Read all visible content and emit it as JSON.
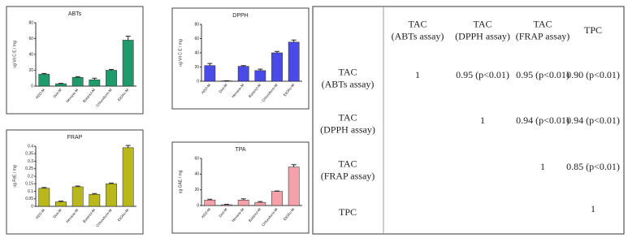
{
  "chart_data": [
    {
      "type": "bar",
      "title": "ABTs",
      "y_label": "ug Vit C E / mg",
      "categories": [
        "H2O-M",
        "Dist-M",
        "Hexane-M",
        "Butanol-M",
        "Chloroform-M",
        "EtOAc-M"
      ],
      "values": [
        15,
        3,
        11,
        8,
        20,
        58
      ],
      "errors": [
        1,
        0.5,
        1,
        2,
        1,
        5
      ],
      "color": "#1f9a6b",
      "ylim": [
        0,
        80
      ],
      "yticks": [
        0,
        20,
        40,
        60,
        80
      ]
    },
    {
      "type": "bar",
      "title": "DPPH",
      "y_label": "ug Vit C E / mg",
      "categories": [
        "H2O-M",
        "Dist-M",
        "Hexane-M",
        "Butanol-M",
        "Chloroform-M",
        "EtOAc-M"
      ],
      "values": [
        22,
        0.5,
        21,
        15,
        40,
        55
      ],
      "errors": [
        3,
        0.2,
        1,
        2,
        2,
        3
      ],
      "color": "#4a4ae6",
      "ylim": [
        0,
        80
      ],
      "yticks": [
        0,
        20,
        40,
        60,
        80
      ]
    },
    {
      "type": "bar",
      "title": "FRAP",
      "y_label": "ug FeE / mg",
      "categories": [
        "H2O-M",
        "Dist-M",
        "Hexane-M",
        "Butanol-M",
        "Chloroform-M",
        "EtOAc-M"
      ],
      "values": [
        0.12,
        0.03,
        0.13,
        0.08,
        0.15,
        0.39
      ],
      "errors": [
        0.005,
        0.005,
        0.005,
        0.005,
        0.005,
        0.015
      ],
      "color": "#b9b81a",
      "ylim": [
        0,
        0.4
      ],
      "yticks": [
        0,
        0.05,
        0.1,
        0.15,
        0.2,
        0.25,
        0.3,
        0.35,
        0.4
      ]
    },
    {
      "type": "bar",
      "title": "TPA",
      "y_label": "ug GAE / mg",
      "categories": [
        "H2O-M",
        "Dist-M",
        "Hexane-M",
        "Butanol-M",
        "Chloroform-M",
        "EtOAc-M"
      ],
      "values": [
        7,
        1,
        7,
        4,
        18,
        49
      ],
      "errors": [
        1,
        0.5,
        1.5,
        1,
        0.5,
        3
      ],
      "color": "#f4a1a9",
      "ylim": [
        0,
        60
      ],
      "yticks": [
        0,
        20,
        40,
        60
      ]
    }
  ],
  "table": {
    "header": [
      [
        "TAC",
        "(ABTs assay)"
      ],
      [
        "TAC",
        "(DPPH assay)"
      ],
      [
        "TAC",
        "(FRAP assay)"
      ],
      [
        "TPC"
      ]
    ],
    "rows": [
      {
        "label": [
          "TAC",
          "(ABTs assay)"
        ],
        "cells": [
          "1",
          "0.95 (p<0.01)",
          "0.95 (p<0.01)",
          "0.90 (p<0.01)"
        ]
      },
      {
        "label": [
          "TAC",
          "(DPPH assay)"
        ],
        "cells": [
          null,
          "1",
          "0.94 (p<0.01)",
          "0.94 (p<0.01)"
        ]
      },
      {
        "label": [
          "TAC",
          "(FRAP assay)"
        ],
        "cells": [
          null,
          null,
          "1",
          "0.85 (p<0.01)"
        ]
      },
      {
        "label": [
          "TPC"
        ],
        "cells": [
          null,
          null,
          null,
          "1"
        ]
      }
    ]
  }
}
